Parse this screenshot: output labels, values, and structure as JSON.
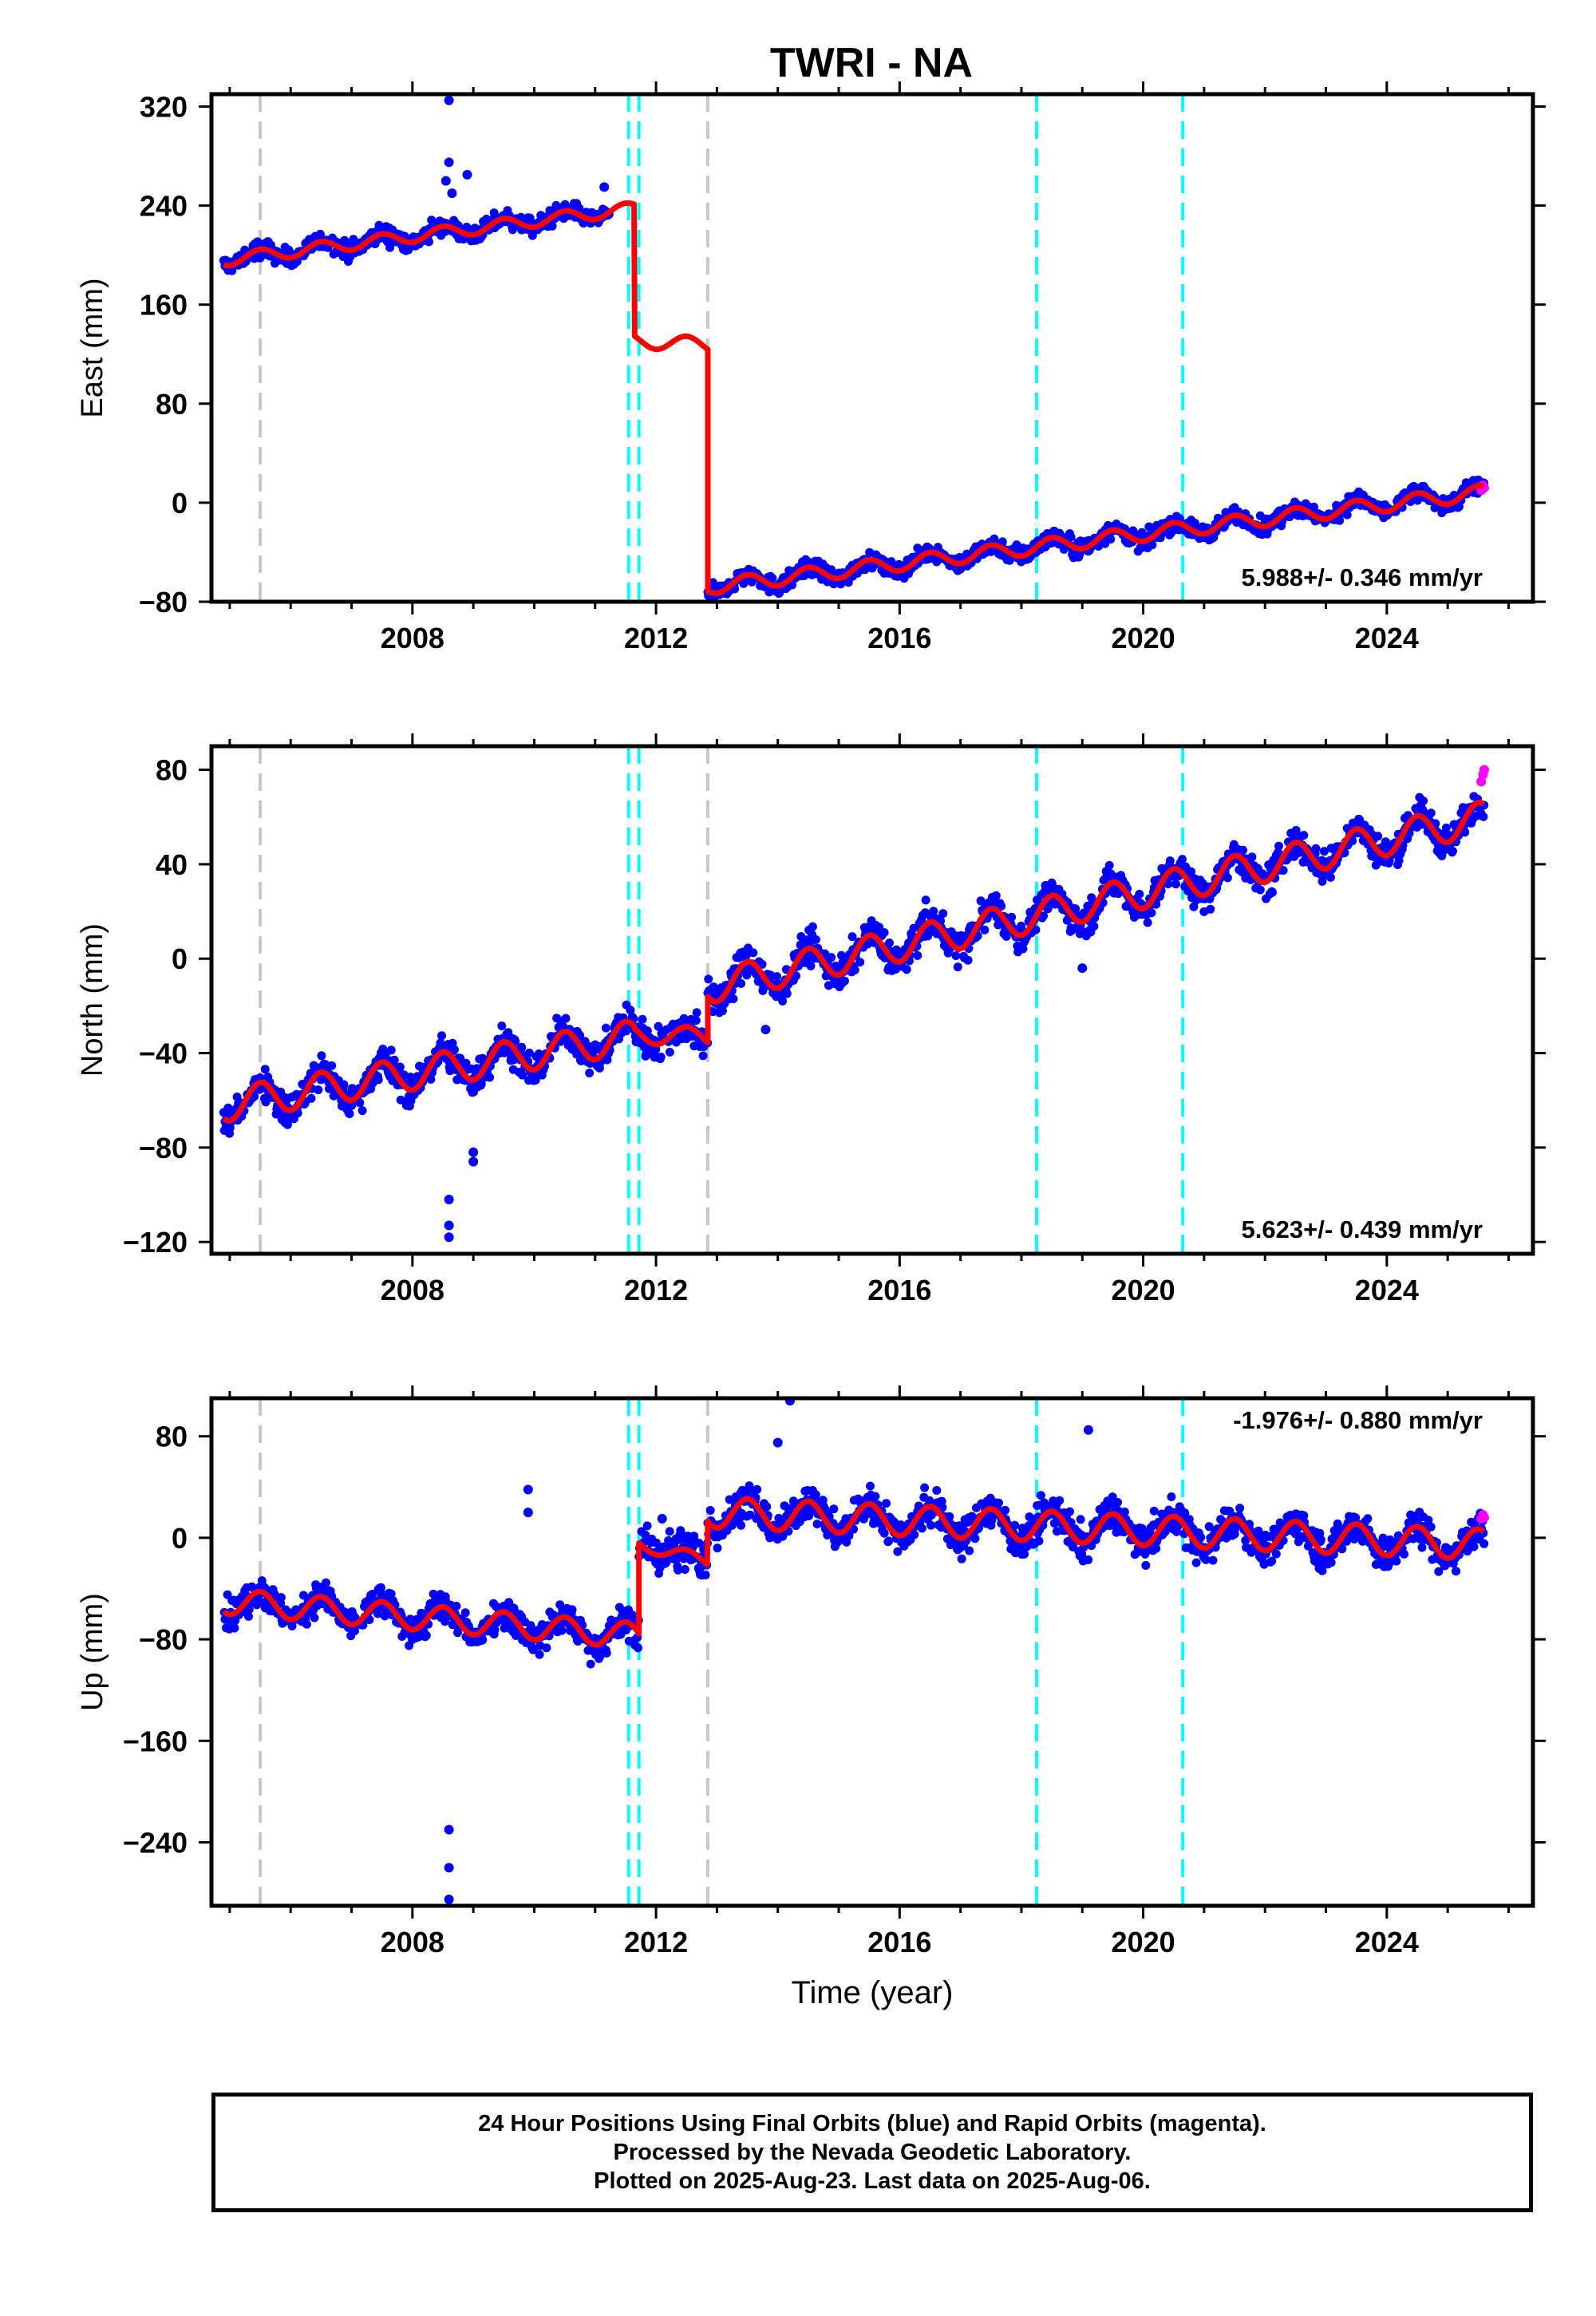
{
  "title": "TWRI - NA",
  "colors": {
    "final_orbits": "#0000ff",
    "rapid_orbits": "#ff00ff",
    "model": "#ff0000",
    "equipment_change": "#c8c8c8",
    "earthquake": "#00ffff"
  },
  "chart_data": [
    {
      "type": "scatter",
      "title": "TWRI - NA",
      "ylabel": "East (mm)",
      "xlabel": "",
      "xlim": [
        2004.7,
        2026.4
      ],
      "ylim": [
        -80,
        330
      ],
      "xticks": [
        2008,
        2012,
        2016,
        2020,
        2024
      ],
      "yticks": [
        -80,
        0,
        80,
        160,
        240,
        320
      ],
      "rate_label": "5.988+/- 0.346 mm/yr",
      "vlines_gray": [
        2005.5,
        2012.85
      ],
      "vlines_cyan": [
        2011.55,
        2011.72,
        2018.25,
        2020.65
      ],
      "segments": [
        {
          "t0": 2004.9,
          "t1": 2011.65,
          "a": 196,
          "b": 6.2,
          "amp": 5,
          "scatter": 5
        },
        {
          "t0": 2011.65,
          "t1": 2012.85,
          "a": 131,
          "b": -3,
          "amp": 6,
          "scatter": 0,
          "model_only": true
        },
        {
          "t0": 2012.85,
          "t1": 2025.6,
          "a": -68,
          "b": 5.99,
          "amp": 6,
          "scatter": 5
        }
      ],
      "gap": [
        2011.25,
        2012.85
      ],
      "outliers": [
        [
          2008.6,
          325
        ],
        [
          2008.6,
          275
        ],
        [
          2008.55,
          260
        ],
        [
          2008.65,
          250
        ],
        [
          2008.9,
          265
        ],
        [
          2011.15,
          255
        ]
      ],
      "rapid": [
        [
          2025.55,
          10
        ],
        [
          2025.58,
          14
        ],
        [
          2025.6,
          12
        ]
      ],
      "grid": false
    },
    {
      "type": "scatter",
      "ylabel": "North (mm)",
      "xlabel": "",
      "xlim": [
        2004.7,
        2026.4
      ],
      "ylim": [
        -125,
        90
      ],
      "xticks": [
        2008,
        2012,
        2016,
        2020,
        2024
      ],
      "yticks": [
        -120,
        -80,
        -40,
        0,
        40,
        80
      ],
      "rate_label": "5.623+/- 0.439 mm/yr",
      "vlines_gray": [
        2005.5,
        2012.85
      ],
      "vlines_cyan": [
        2011.55,
        2011.72,
        2018.25,
        2020.65
      ],
      "segments": [
        {
          "t0": 2004.9,
          "t1": 2011.65,
          "a": -62,
          "b": 4.3,
          "amp": 7,
          "scatter": 5
        },
        {
          "t0": 2011.65,
          "t1": 2012.85,
          "a": -32,
          "b": -1,
          "amp": 4,
          "scatter": 5
        },
        {
          "t0": 2012.85,
          "t1": 2025.6,
          "a": -12,
          "b": 5.62,
          "amp": 7,
          "scatter": 5
        }
      ],
      "gap": [],
      "outliers": [
        [
          2008.6,
          -102
        ],
        [
          2008.6,
          -113
        ],
        [
          2008.6,
          -118
        ],
        [
          2009.0,
          -82
        ],
        [
          2009.0,
          -86
        ],
        [
          2019.0,
          -4
        ],
        [
          2013.8,
          -30
        ]
      ],
      "rapid": [
        [
          2025.55,
          75
        ],
        [
          2025.58,
          78
        ],
        [
          2025.6,
          80
        ]
      ],
      "grid": false
    },
    {
      "type": "scatter",
      "ylabel": "Up (mm)",
      "xlabel": "Time (year)",
      "xlim": [
        2004.7,
        2026.4
      ],
      "ylim": [
        -290,
        110
      ],
      "xticks": [
        2008,
        2012,
        2016,
        2020,
        2024
      ],
      "yticks": [
        -240,
        -160,
        -80,
        0,
        80
      ],
      "rate_label": "-1.976+/- 0.880 mm/yr",
      "vlines_gray": [
        2005.5,
        2012.85
      ],
      "vlines_cyan": [
        2011.55,
        2011.72,
        2018.25,
        2020.65
      ],
      "segments": [
        {
          "t0": 2004.9,
          "t1": 2011.72,
          "a": -50,
          "b": -4,
          "amp": 10,
          "scatter": 9
        },
        {
          "t0": 2011.72,
          "t1": 2012.85,
          "a": -5,
          "b": -12,
          "amp": 5,
          "scatter": 12
        },
        {
          "t0": 2012.85,
          "t1": 2025.6,
          "a": 20,
          "b": -1.98,
          "amp": 12,
          "scatter": 10
        }
      ],
      "gap": [],
      "outliers": [
        [
          2008.6,
          -230
        ],
        [
          2008.6,
          -260
        ],
        [
          2008.6,
          -285
        ],
        [
          2009.9,
          38
        ],
        [
          2009.9,
          20
        ],
        [
          2014.2,
          108
        ],
        [
          2014.0,
          75
        ],
        [
          2019.1,
          85
        ],
        [
          2012.1,
          15
        ]
      ],
      "rapid": [
        [
          2025.55,
          15
        ],
        [
          2025.58,
          18
        ],
        [
          2025.6,
          16
        ]
      ],
      "grid": false
    }
  ],
  "footer": {
    "line1": "24 Hour Positions Using Final Orbits (blue) and Rapid Orbits (magenta).",
    "line2": "Processed by the Nevada Geodetic Laboratory.",
    "line3": "Plotted on 2025-Aug-23. Last data on 2025-Aug-06."
  }
}
